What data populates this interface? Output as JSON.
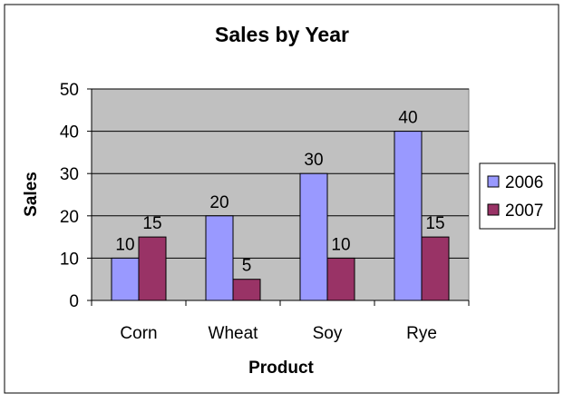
{
  "chart_data": {
    "type": "bar",
    "title": "Sales by Year",
    "xlabel": "Product",
    "ylabel": "Sales",
    "categories": [
      "Corn",
      "Wheat",
      "Soy",
      "Rye"
    ],
    "series": [
      {
        "name": "2006",
        "values": [
          10,
          20,
          30,
          40
        ],
        "color": "#9999ff"
      },
      {
        "name": "2007",
        "values": [
          15,
          5,
          10,
          15
        ],
        "color": "#993366"
      }
    ],
    "ylim": [
      0,
      50
    ],
    "yticks": [
      "0",
      "10",
      "20",
      "30",
      "40",
      "50"
    ],
    "grid": true,
    "legend": "right",
    "plot_background": "#c0c0c0"
  }
}
